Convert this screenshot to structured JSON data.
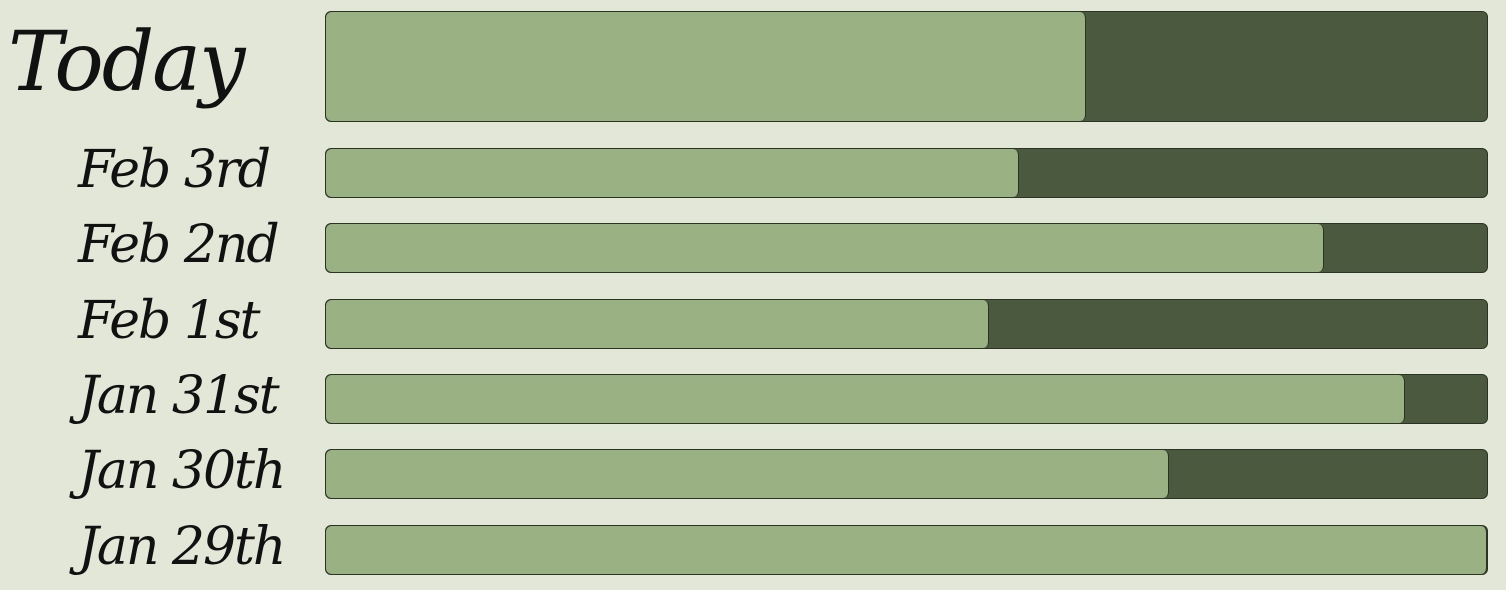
{
  "rows": [
    {
      "label": "Today",
      "progress": 65.5
    },
    {
      "label": "Feb 3rd",
      "progress": 59.7
    },
    {
      "label": "Feb 2nd",
      "progress": 86
    },
    {
      "label": "Feb 1st",
      "progress": 57.1
    },
    {
      "label": "Jan 31st",
      "progress": 92.9
    },
    {
      "label": "Jan 30th",
      "progress": 72.6
    },
    {
      "label": "Jan 29th",
      "progress": 100
    }
  ]
}
